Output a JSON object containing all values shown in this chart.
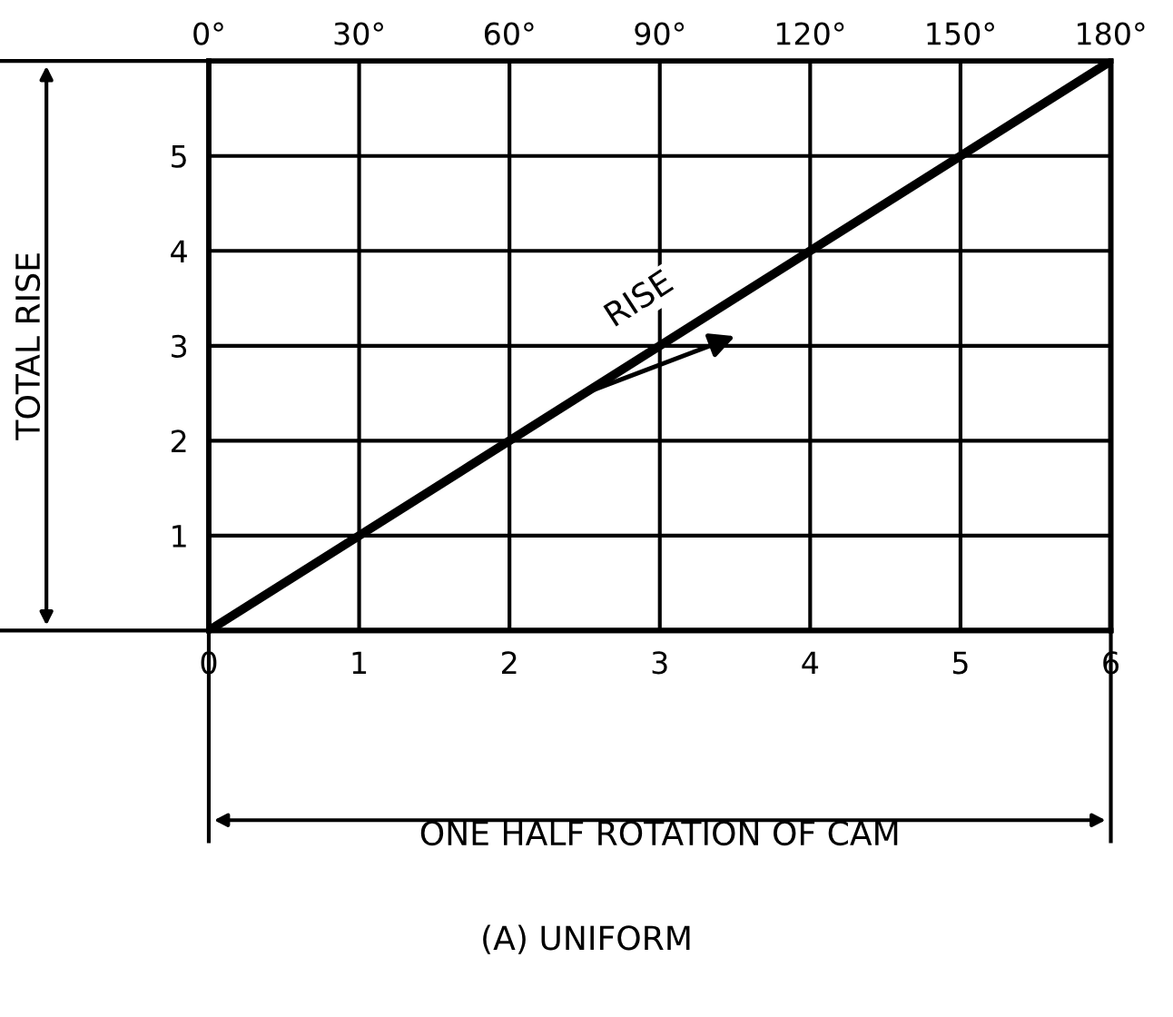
{
  "chart_data": {
    "type": "line",
    "xlabel": "ONE HALF ROTATION OF CAM",
    "ylabel": "TOTAL RISE",
    "x": [
      0,
      6
    ],
    "series": [
      {
        "color": "#000000",
        "values": [
          0,
          6
        ]
      }
    ],
    "xlim": [
      0,
      6
    ],
    "xticks": [
      0,
      1,
      2,
      3,
      4,
      5,
      6
    ],
    "ylim": [
      0,
      6
    ],
    "yticks": [
      1,
      2,
      3,
      4,
      5
    ],
    "x2lim": [
      0,
      180
    ],
    "x2ticks": [
      {
        "value": 0,
        "label": "0°"
      },
      {
        "value": 30,
        "label": "30°"
      },
      {
        "value": 60,
        "label": "60°"
      },
      {
        "value": 90,
        "label": "90°"
      },
      {
        "value": 120,
        "label": "120°"
      },
      {
        "value": 150,
        "label": "150°"
      },
      {
        "value": 180,
        "label": "180°"
      }
    ],
    "grid": true,
    "marker": "none",
    "line_style": "solid",
    "annotations": [
      {
        "text": "RISE",
        "x": 3,
        "y": 3
      },
      "(A) UNIFORM"
    ]
  }
}
